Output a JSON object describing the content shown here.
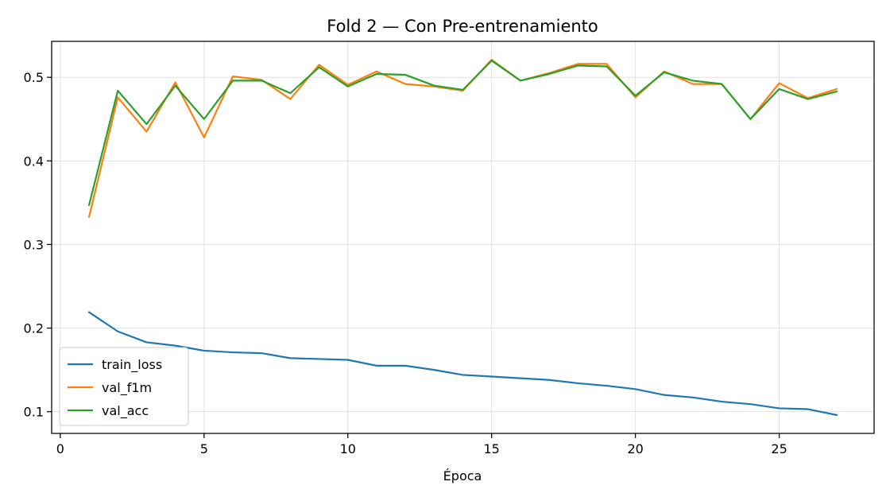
{
  "chart_data": {
    "type": "line",
    "title": "Fold 2 — Con Pre-entrenamiento",
    "xlabel": "Época",
    "ylabel": "",
    "xlim": [
      -0.3,
      28.3
    ],
    "ylim": [
      0.074,
      0.543
    ],
    "xticks": [
      0,
      5,
      10,
      15,
      20,
      25
    ],
    "yticks": [
      0.1,
      0.2,
      0.3,
      0.4,
      0.5
    ],
    "grid": true,
    "legend_position": "lower-left",
    "x": [
      1,
      2,
      3,
      4,
      5,
      6,
      7,
      8,
      9,
      10,
      11,
      12,
      13,
      14,
      15,
      16,
      17,
      18,
      19,
      20,
      21,
      22,
      23,
      24,
      25,
      26,
      27
    ],
    "series": [
      {
        "name": "train_loss",
        "color": "#1f77b4",
        "values": [
          0.219,
          0.196,
          0.183,
          0.179,
          0.173,
          0.171,
          0.17,
          0.164,
          0.163,
          0.162,
          0.155,
          0.155,
          0.15,
          0.144,
          0.142,
          0.14,
          0.138,
          0.134,
          0.131,
          0.127,
          0.12,
          0.117,
          0.112,
          0.109,
          0.104,
          0.103,
          0.096
        ]
      },
      {
        "name": "val_f1m",
        "color": "#ff7f0e",
        "values": [
          0.333,
          0.476,
          0.435,
          0.494,
          0.428,
          0.501,
          0.497,
          0.474,
          0.515,
          0.491,
          0.507,
          0.492,
          0.489,
          0.484,
          0.521,
          0.496,
          0.505,
          0.516,
          0.516,
          0.476,
          0.507,
          0.492,
          0.492,
          0.45,
          0.493,
          0.475,
          0.486
        ]
      },
      {
        "name": "val_acc",
        "color": "#2ca02c",
        "values": [
          0.347,
          0.484,
          0.444,
          0.49,
          0.45,
          0.496,
          0.496,
          0.481,
          0.512,
          0.489,
          0.504,
          0.503,
          0.49,
          0.485,
          0.52,
          0.496,
          0.504,
          0.514,
          0.513,
          0.478,
          0.506,
          0.496,
          0.492,
          0.45,
          0.486,
          0.474,
          0.483
        ]
      }
    ]
  }
}
